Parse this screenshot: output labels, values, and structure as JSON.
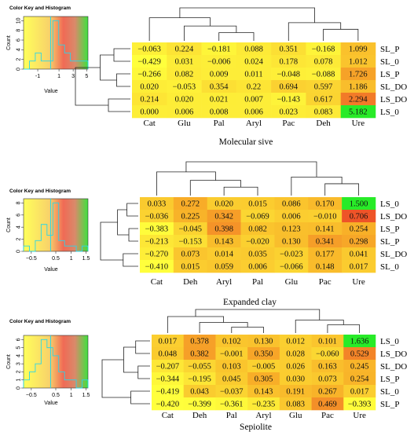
{
  "chart_data": [
    {
      "type": "heatmap",
      "title": "Molecular sive",
      "color_key_title": "Color Key and Histogram",
      "color_key_xlabel": "Value",
      "color_key_ylabel": "Count",
      "color_key_xticks": [
        "-1",
        "1",
        "3",
        "5"
      ],
      "color_key_yticks": [
        "0",
        "2",
        "4",
        "6",
        "8",
        "10"
      ],
      "columns": [
        "Cat",
        "Glu",
        "Pal",
        "Aryl",
        "Pac",
        "Deh",
        "Ure"
      ],
      "rows": [
        "SL_P",
        "SL_0",
        "LS_P",
        "SL_DO",
        "LS_DO",
        "LS_0"
      ],
      "values": [
        [
          "−0.063",
          "0.224",
          "−0.181",
          "0.088",
          "0.351",
          "−0.168",
          "1.099"
        ],
        [
          "−0.429",
          "0.031",
          "−0.006",
          "0.024",
          "0.178",
          "0.078",
          "1.012"
        ],
        [
          "−0.266",
          "0.082",
          "0.009",
          "0.011",
          "−0.048",
          "−0.088",
          "1.726"
        ],
        [
          "0.020",
          "−0.053",
          "0.354",
          "0.22",
          "0.694",
          "0.597",
          "1.186"
        ],
        [
          "0.214",
          "0.020",
          "0.021",
          "0.007",
          "−0.143",
          "0.617",
          "2.294"
        ],
        [
          "0.000",
          "0.006",
          "0.008",
          "0.006",
          "0.023",
          "0.083",
          "5.182"
        ]
      ]
    },
    {
      "type": "heatmap",
      "title": "Expanded clay",
      "color_key_title": "Color Key and Histogram",
      "color_key_xlabel": "Value",
      "color_key_ylabel": "Count",
      "color_key_xticks": [
        "−0.5",
        "0.5",
        "1",
        "1.5"
      ],
      "color_key_yticks": [
        "0",
        "2",
        "4",
        "6",
        "8"
      ],
      "columns": [
        "Cat",
        "Deh",
        "Aryl",
        "Pal",
        "Glu",
        "Pac",
        "Ure"
      ],
      "rows": [
        "LS_0",
        "LS_DO",
        "LS_P",
        "SL_P",
        "SL_DO",
        "SL_0"
      ],
      "values": [
        [
          "0.033",
          "0.272",
          "0.020",
          "0.015",
          "0.086",
          "0.170",
          "1.500"
        ],
        [
          "−0.036",
          "0.225",
          "0.342",
          "−0.069",
          "0.006",
          "−0.010",
          "0.706"
        ],
        [
          "−0.383",
          "−0.045",
          "0.398",
          "0.082",
          "0.123",
          "0.141",
          "0.254"
        ],
        [
          "−0.213",
          "−0.153",
          "0.143",
          "−0.020",
          "0.130",
          "0.341",
          "0.298"
        ],
        [
          "−0.270",
          "0.073",
          "0.014",
          "0.035",
          "−0.023",
          "0.177",
          "0.041"
        ],
        [
          "−0.410",
          "0.015",
          "0.059",
          "0.006",
          "−0.066",
          "0.148",
          "0.017"
        ]
      ]
    },
    {
      "type": "heatmap",
      "title": "Sepiolite",
      "color_key_title": "Color Key and Histogram",
      "color_key_xlabel": "Value",
      "color_key_ylabel": "Count",
      "color_key_xticks": [
        "−0.5",
        "0.5",
        "1",
        "1.5"
      ],
      "color_key_yticks": [
        "0",
        "1",
        "2",
        "3",
        "4",
        "5",
        "6"
      ],
      "columns": [
        "Cat",
        "Deh",
        "Pal",
        "Aryl",
        "Glu",
        "Pac",
        "Ure"
      ],
      "rows": [
        "LS_0",
        "LS_DO",
        "SL_DO",
        "LS_P",
        "SL_0",
        "SL_P"
      ],
      "values": [
        [
          "0.017",
          "0.378",
          "0.102",
          "0.130",
          "0.012",
          "0.101",
          "1.636"
        ],
        [
          "0.048",
          "0.382",
          "−0.001",
          "0.350",
          "0.028",
          "−0.060",
          "0.529"
        ],
        [
          "−0.207",
          "−0.055",
          "0.103",
          "−0.005",
          "0.026",
          "0.163",
          "0.245"
        ],
        [
          "−0.344",
          "−0.195",
          "0.045",
          "0.305",
          "0.030",
          "0.073",
          "0.254"
        ],
        [
          "−0.419",
          "0.043",
          "−0.037",
          "0.143",
          "0.191",
          "0.267",
          "0.017"
        ],
        [
          "−0.420",
          "−0.399",
          "−0.361",
          "−0.235",
          "0.083",
          "0.469",
          "−0.393"
        ]
      ]
    }
  ]
}
